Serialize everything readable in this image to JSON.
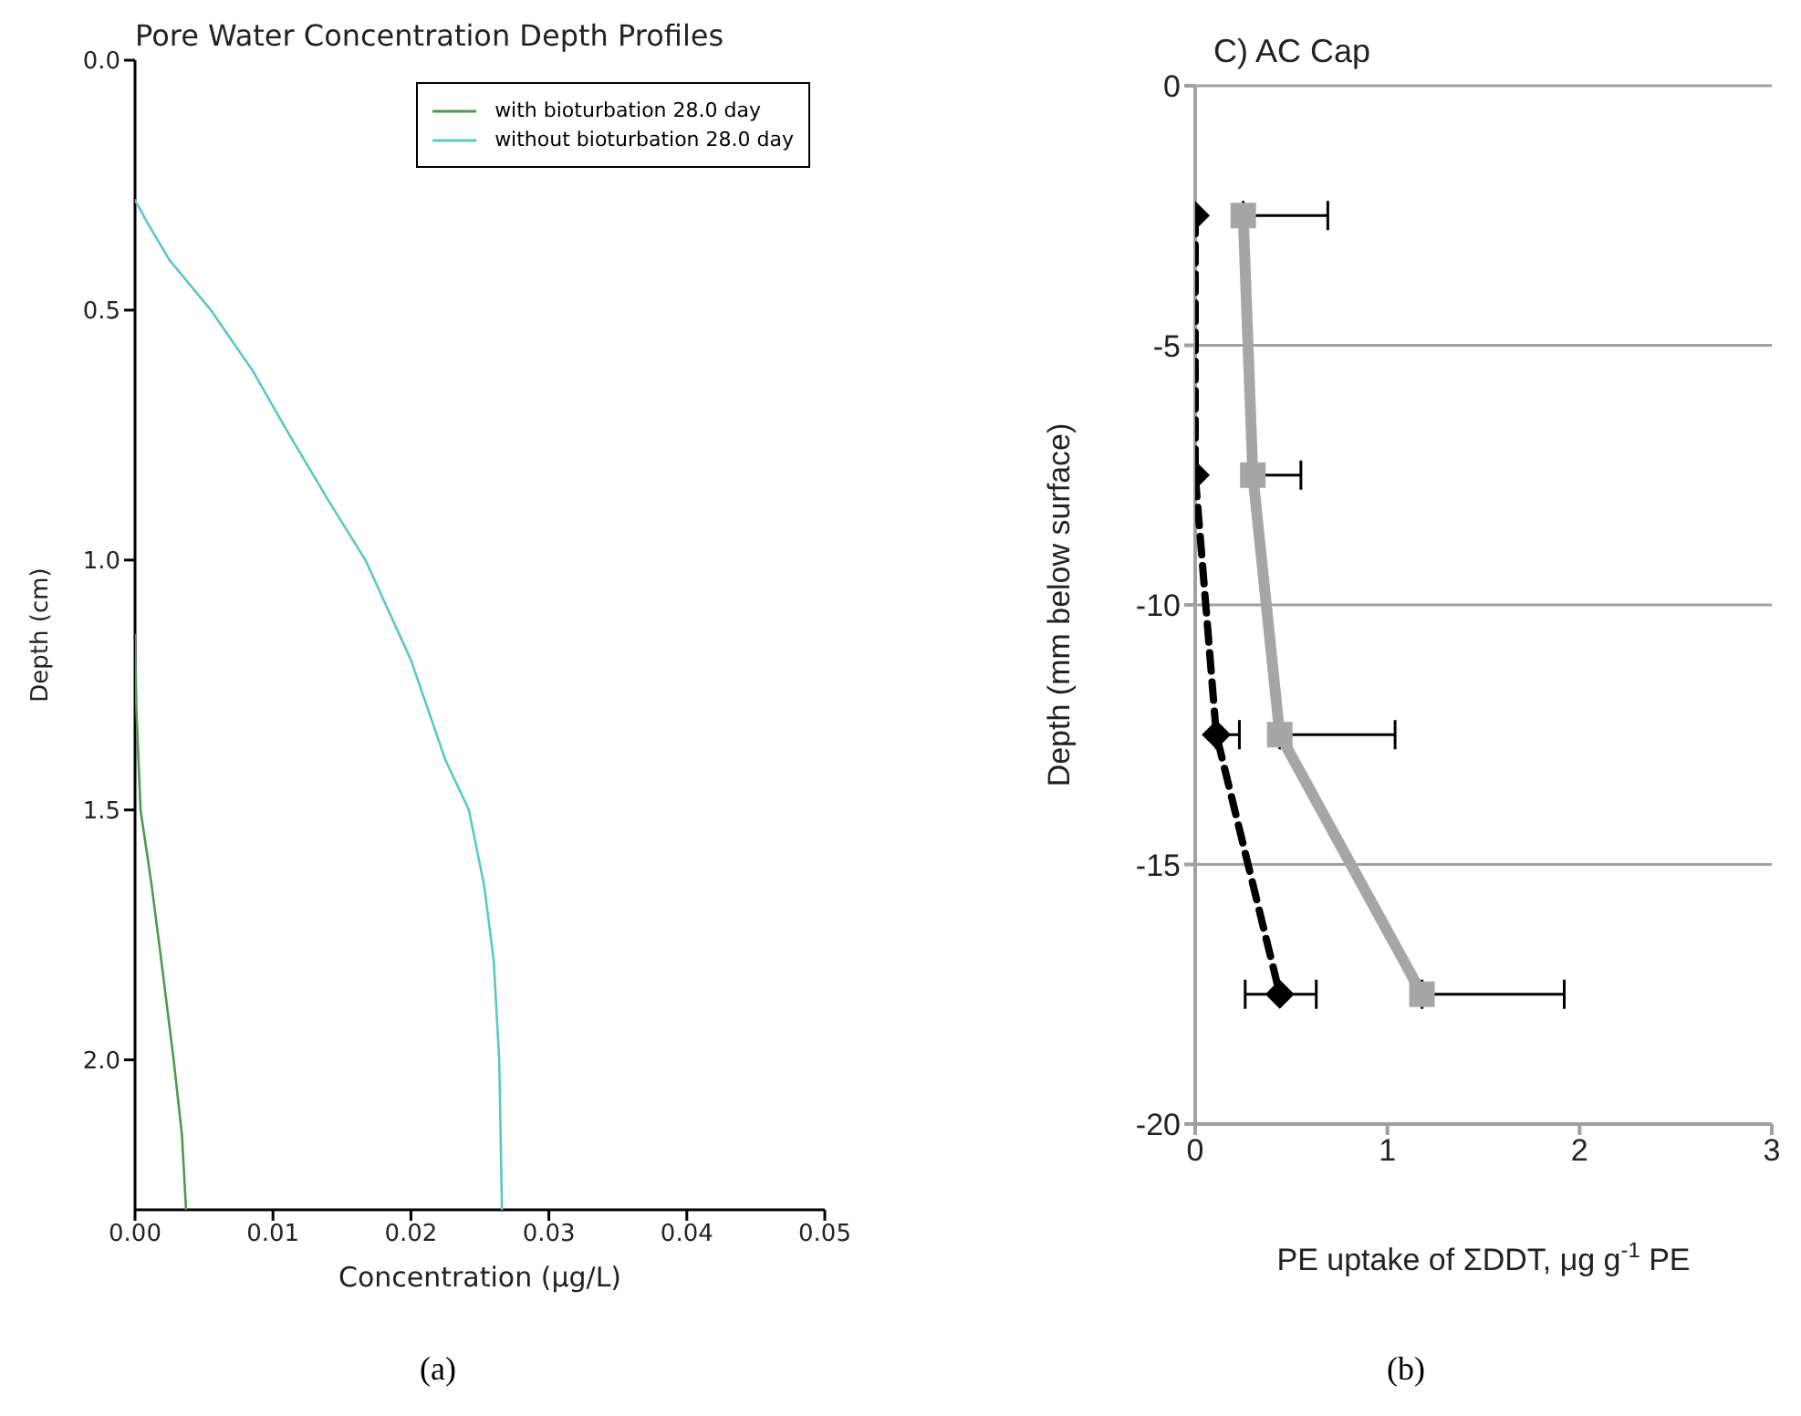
{
  "chart_data": [
    {
      "type": "line",
      "title": "Pore Water Concentration Depth Profiles",
      "xlabel": "Concentration (μg/L)",
      "ylabel": "Depth (cm)",
      "xlim": [
        0,
        0.05
      ],
      "xticks": [
        {
          "value": 0,
          "label": "0.00"
        },
        {
          "value": 0.01,
          "label": "0.01"
        },
        {
          "value": 0.02,
          "label": "0.02"
        },
        {
          "value": 0.03,
          "label": "0.03"
        },
        {
          "value": 0.04,
          "label": "0.04"
        },
        {
          "value": 0.05,
          "label": "0.05"
        }
      ],
      "ylim": [
        2.3,
        0
      ],
      "yticks": [
        {
          "value": 0,
          "label": "0.0"
        },
        0.5,
        {
          "value": 1,
          "label": "1.0"
        },
        1.5,
        {
          "value": 2,
          "label": "2.0"
        }
      ],
      "grid": false,
      "legend": "top right",
      "annotations": [
        "(a)"
      ],
      "series": [
        {
          "name": "with bioturbation 28.0 day",
          "color": "#4c9a4c",
          "x": [
            0,
            0.0001,
            0.0004,
            0.0012,
            0.0019,
            0.0028,
            0.0034,
            0.0037
          ],
          "values": [
            1.15,
            1.3,
            1.5,
            1.65,
            1.8,
            2.0,
            2.15,
            2.3
          ]
        },
        {
          "name": "without bioturbation 28.0 day",
          "color": "#5bc8c8",
          "x": [
            0,
            0.001,
            0.0025,
            0.0055,
            0.0085,
            0.0112,
            0.014,
            0.0167,
            0.02,
            0.0225,
            0.0242,
            0.0253,
            0.026,
            0.0264,
            0.0266
          ],
          "values": [
            0.28,
            0.33,
            0.4,
            0.5,
            0.62,
            0.75,
            0.88,
            1.0,
            1.2,
            1.4,
            1.5,
            1.65,
            1.8,
            2.0,
            2.3
          ]
        }
      ]
    },
    {
      "type": "line",
      "title": "C) AC Cap",
      "xlabel": "PE uptake of ΣDDT, μg g$^{-1}$ PE",
      "ylabel": "Depth (mm below surface)",
      "xlim": [
        0,
        3
      ],
      "xticks": [
        0,
        1,
        2,
        3
      ],
      "ylim": [
        -20,
        0
      ],
      "yticks": [
        0,
        -5,
        -10,
        -15,
        -20
      ],
      "grid": "y",
      "annotations": [
        "(b)"
      ],
      "series": [
        {
          "color": "#a6a6a6",
          "marker": "square",
          "line_style": "solid",
          "x": [
            0.25,
            0.3,
            0.44,
            1.18
          ],
          "values": [
            -2.5,
            -7.5,
            -12.5,
            -17.5
          ],
          "xerrors": [
            [
              0.25,
              0.69
            ],
            [
              0.3,
              0.55
            ],
            [
              0.44,
              1.04
            ],
            [
              1.18,
              1.92
            ]
          ]
        },
        {
          "color": "#000000",
          "marker": "diamond",
          "line_style": "dashed",
          "x": [
            0,
            0,
            0.11,
            0.44
          ],
          "values": [
            -2.5,
            -7.5,
            -12.5,
            -17.5
          ],
          "xerrors": [
            null,
            null,
            [
              0.11,
              0.23
            ],
            [
              0.26,
              0.63
            ]
          ]
        }
      ]
    }
  ]
}
